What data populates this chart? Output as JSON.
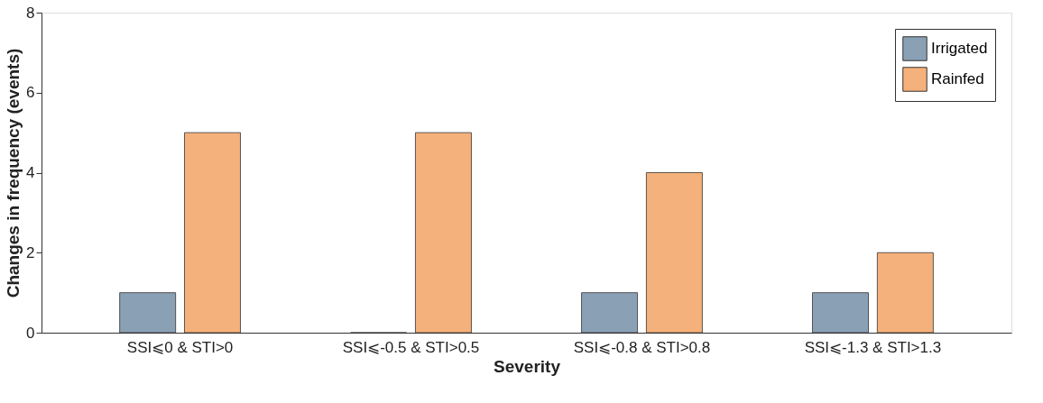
{
  "chart_data": {
    "type": "bar",
    "xlabel": "Severity",
    "ylabel": "Changes in frequency (events)",
    "categories": [
      "SSI⩽0 & STI>0",
      "SSI⩽-0.5 & STI>0.5",
      "SSI⩽-0.8 & STI>0.8",
      "SSI⩽-1.3 & STI>1.3"
    ],
    "series": [
      {
        "name": "Irrigated",
        "color": "#8aa0b5",
        "values": [
          1,
          0,
          1,
          1
        ]
      },
      {
        "name": "Rainfed",
        "color": "#f5b17b",
        "values": [
          5,
          5,
          4,
          2
        ]
      }
    ],
    "ylim": [
      0,
      8
    ],
    "yticks": [
      0,
      2,
      4,
      6,
      8
    ],
    "grid": false,
    "legend": "top right"
  }
}
